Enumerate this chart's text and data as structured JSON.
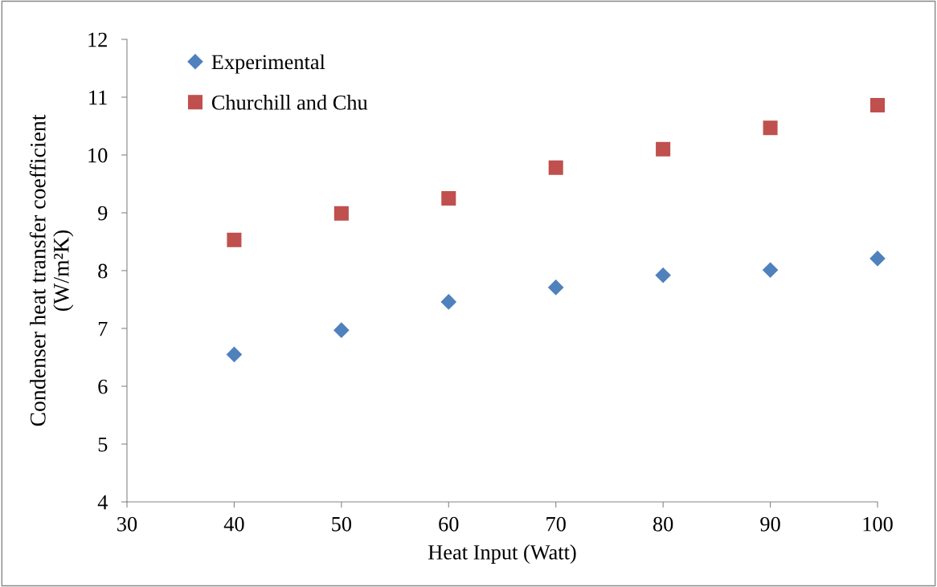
{
  "chart_data": {
    "type": "scatter",
    "xlabel": "Heat Input (Watt)",
    "ylabel": "Condenser heat transfer coefficient\n(W/m²K)",
    "x": [
      40,
      50,
      60,
      70,
      80,
      90,
      100
    ],
    "series": [
      {
        "name": "Experimental",
        "color": "#4f81bd",
        "marker": "diamond",
        "values": [
          6.55,
          6.97,
          7.46,
          7.71,
          7.92,
          8.01,
          8.21
        ]
      },
      {
        "name": "Churchill and Chu",
        "color": "#c0504d",
        "marker": "square",
        "values": [
          8.53,
          8.99,
          9.25,
          9.78,
          10.1,
          10.47,
          10.86
        ]
      }
    ],
    "xlim": [
      30,
      100
    ],
    "xticks": [
      30,
      40,
      50,
      60,
      70,
      80,
      90,
      100
    ],
    "ylim": [
      4,
      12
    ],
    "yticks": [
      4,
      5,
      6,
      7,
      8,
      9,
      10,
      11,
      12
    ],
    "grid": false,
    "legend": "top left"
  }
}
